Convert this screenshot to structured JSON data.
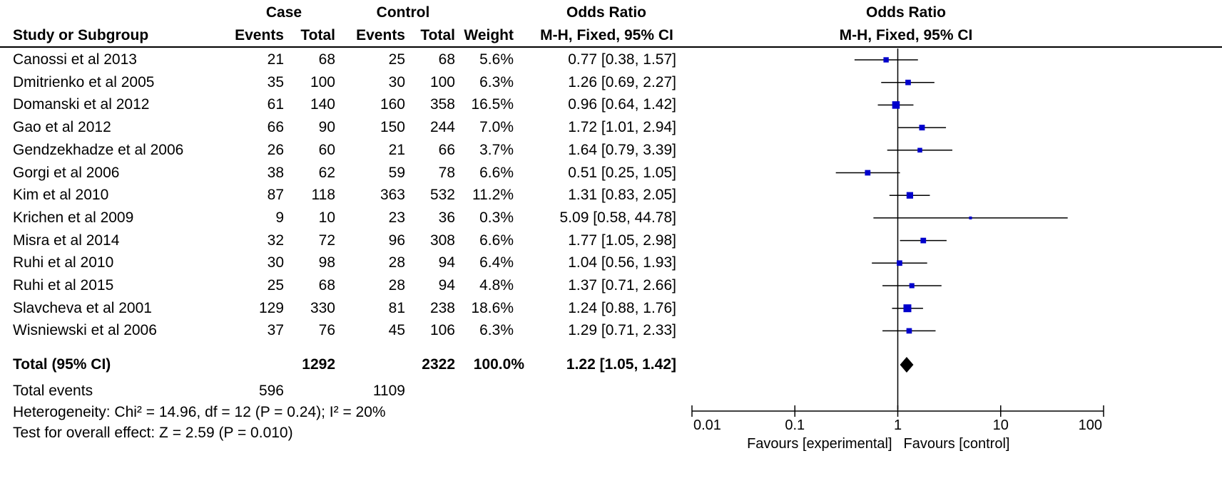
{
  "header": {
    "case_label": "Case",
    "control_label": "Control",
    "or_label_table": "Odds Ratio",
    "or_label_plot": "Odds Ratio",
    "study_col": "Study or Subgroup",
    "events_col_case": "Events",
    "total_col_case": "Total",
    "events_col_control": "Events",
    "total_col_control": "Total",
    "weight_col": "Weight",
    "method_table": "M-H, Fixed, 95% CI",
    "method_plot": "M-H, Fixed, 95% CI"
  },
  "studies": [
    {
      "name": "Canossi et al 2013",
      "case_events": "21",
      "case_total": "68",
      "ctrl_events": "25",
      "ctrl_total": "68",
      "weight": "5.6%",
      "ci_text": "0.77 [0.38, 1.57]"
    },
    {
      "name": "Dmitrienko et al 2005",
      "case_events": "35",
      "case_total": "100",
      "ctrl_events": "30",
      "ctrl_total": "100",
      "weight": "6.3%",
      "ci_text": "1.26 [0.69, 2.27]"
    },
    {
      "name": "Domanski et al 2012",
      "case_events": "61",
      "case_total": "140",
      "ctrl_events": "160",
      "ctrl_total": "358",
      "weight": "16.5%",
      "ci_text": "0.96 [0.64, 1.42]"
    },
    {
      "name": "Gao et al 2012",
      "case_events": "66",
      "case_total": "90",
      "ctrl_events": "150",
      "ctrl_total": "244",
      "weight": "7.0%",
      "ci_text": "1.72 [1.01, 2.94]"
    },
    {
      "name": "Gendzekhadze et al 2006",
      "case_events": "26",
      "case_total": "60",
      "ctrl_events": "21",
      "ctrl_total": "66",
      "weight": "3.7%",
      "ci_text": "1.64 [0.79, 3.39]"
    },
    {
      "name": "Gorgi et al 2006",
      "case_events": "38",
      "case_total": "62",
      "ctrl_events": "59",
      "ctrl_total": "78",
      "weight": "6.6%",
      "ci_text": "0.51 [0.25, 1.05]"
    },
    {
      "name": "Kim et al 2010",
      "case_events": "87",
      "case_total": "118",
      "ctrl_events": "363",
      "ctrl_total": "532",
      "weight": "11.2%",
      "ci_text": "1.31 [0.83, 2.05]"
    },
    {
      "name": "Krichen et al 2009",
      "case_events": "9",
      "case_total": "10",
      "ctrl_events": "23",
      "ctrl_total": "36",
      "weight": "0.3%",
      "ci_text": "5.09 [0.58, 44.78]"
    },
    {
      "name": "Misra et al 2014",
      "case_events": "32",
      "case_total": "72",
      "ctrl_events": "96",
      "ctrl_total": "308",
      "weight": "6.6%",
      "ci_text": "1.77 [1.05, 2.98]"
    },
    {
      "name": "Ruhi et al 2010",
      "case_events": "30",
      "case_total": "98",
      "ctrl_events": "28",
      "ctrl_total": "94",
      "weight": "6.4%",
      "ci_text": "1.04 [0.56, 1.93]"
    },
    {
      "name": "Ruhi et al 2015",
      "case_events": "25",
      "case_total": "68",
      "ctrl_events": "28",
      "ctrl_total": "94",
      "weight": "4.8%",
      "ci_text": "1.37 [0.71, 2.66]"
    },
    {
      "name": "Slavcheva et al 2001",
      "case_events": "129",
      "case_total": "330",
      "ctrl_events": "81",
      "ctrl_total": "238",
      "weight": "18.6%",
      "ci_text": "1.24 [0.88, 1.76]"
    },
    {
      "name": "Wisniewski et al 2006",
      "case_events": "37",
      "case_total": "76",
      "ctrl_events": "45",
      "ctrl_total": "106",
      "weight": "6.3%",
      "ci_text": "1.29 [0.71, 2.33]"
    }
  ],
  "total": {
    "label": "Total (95% CI)",
    "case_total": "1292",
    "ctrl_total": "2322",
    "weight": "100.0%",
    "ci_text": "1.22 [1.05, 1.42]"
  },
  "total_events": {
    "label": "Total events",
    "case": "596",
    "control": "1109"
  },
  "heterogeneity": "Heterogeneity: Chi² = 14.96, df = 12 (P = 0.24); I² = 20%",
  "overall_effect": "Test for overall effect: Z = 2.59 (P = 0.010)",
  "chart_data": {
    "type": "forest",
    "scale": "log",
    "x_ticks": [
      "0.01",
      "0.1",
      "1",
      "10",
      "100"
    ],
    "xlim": [
      0.01,
      100
    ],
    "null_line": 1,
    "favours_left": "Favours [experimental]",
    "favours_right": "Favours [control]",
    "square_color": "#0000cc",
    "studies": [
      {
        "or": 0.77,
        "lo": 0.38,
        "hi": 1.57,
        "weight": 5.6
      },
      {
        "or": 1.26,
        "lo": 0.69,
        "hi": 2.27,
        "weight": 6.3
      },
      {
        "or": 0.96,
        "lo": 0.64,
        "hi": 1.42,
        "weight": 16.5
      },
      {
        "or": 1.72,
        "lo": 1.01,
        "hi": 2.94,
        "weight": 7.0
      },
      {
        "or": 1.64,
        "lo": 0.79,
        "hi": 3.39,
        "weight": 3.7
      },
      {
        "or": 0.51,
        "lo": 0.25,
        "hi": 1.05,
        "weight": 6.6
      },
      {
        "or": 1.31,
        "lo": 0.83,
        "hi": 2.05,
        "weight": 11.2
      },
      {
        "or": 5.09,
        "lo": 0.58,
        "hi": 44.78,
        "weight": 0.3
      },
      {
        "or": 1.77,
        "lo": 1.05,
        "hi": 2.98,
        "weight": 6.6
      },
      {
        "or": 1.04,
        "lo": 0.56,
        "hi": 1.93,
        "weight": 6.4
      },
      {
        "or": 1.37,
        "lo": 0.71,
        "hi": 2.66,
        "weight": 4.8
      },
      {
        "or": 1.24,
        "lo": 0.88,
        "hi": 1.76,
        "weight": 18.6
      },
      {
        "or": 1.29,
        "lo": 0.71,
        "hi": 2.33,
        "weight": 6.3
      }
    ],
    "pooled": {
      "or": 1.22,
      "lo": 1.05,
      "hi": 1.42
    }
  }
}
